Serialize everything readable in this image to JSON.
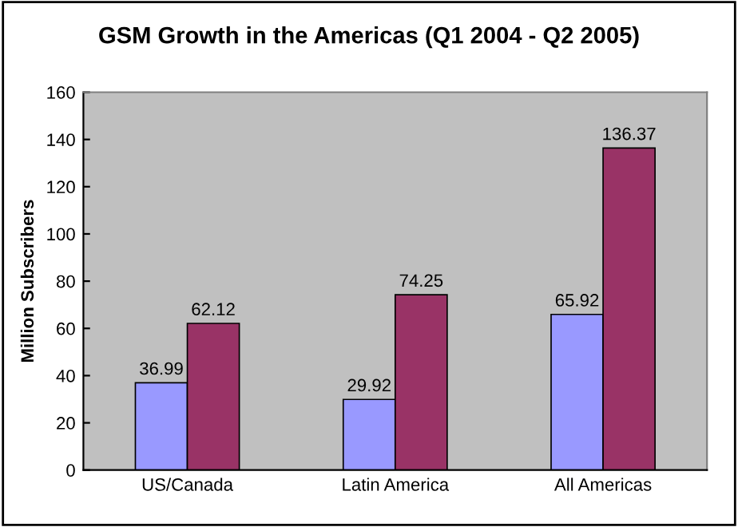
{
  "chart_data": {
    "type": "bar",
    "title": "GSM Growth in the Americas (Q1 2004 - Q2 2005)",
    "ylabel": "Million Subscribers",
    "categories": [
      "US/Canada",
      "Latin America",
      "All Americas"
    ],
    "series": [
      {
        "color": "#9999ff",
        "values": [
          36.99,
          29.92,
          65.92
        ]
      },
      {
        "color": "#993366",
        "values": [
          62.12,
          74.25,
          136.37
        ]
      }
    ],
    "ylim": [
      0,
      160
    ],
    "yticks": [
      0,
      20,
      40,
      60,
      80,
      100,
      120,
      140,
      160
    ],
    "grid": false,
    "data_labels": true
  }
}
